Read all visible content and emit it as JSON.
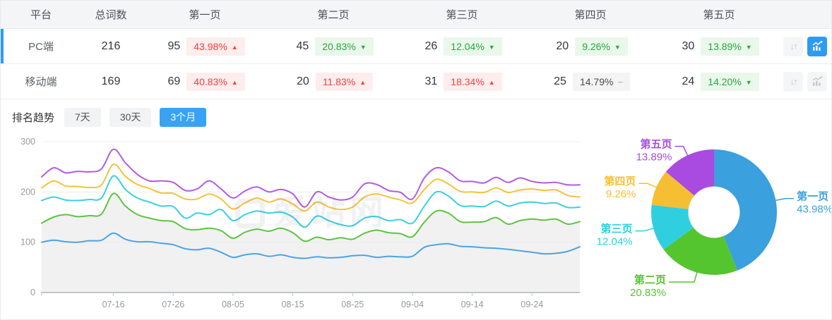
{
  "table": {
    "columns": [
      "平台",
      "总词数",
      "第一页",
      "第二页",
      "第三页",
      "第四页",
      "第五页"
    ],
    "rows": [
      {
        "platform": "PC端",
        "total": "216",
        "selected": "selected",
        "chart_button_state": "active",
        "pages": [
          {
            "count": "95",
            "pct": "43.98%",
            "arrow": "▲",
            "tone": "red"
          },
          {
            "count": "45",
            "pct": "20.83%",
            "arrow": "▼",
            "tone": "green"
          },
          {
            "count": "26",
            "pct": "12.04%",
            "arrow": "▼",
            "tone": "green"
          },
          {
            "count": "20",
            "pct": "9.26%",
            "arrow": "▼",
            "tone": "green"
          },
          {
            "count": "30",
            "pct": "13.89%",
            "arrow": "▼",
            "tone": "green"
          }
        ]
      },
      {
        "platform": "移动端",
        "total": "169",
        "selected": "",
        "chart_button_state": "inactive",
        "pages": [
          {
            "count": "69",
            "pct": "40.83%",
            "arrow": "▲",
            "tone": "red"
          },
          {
            "count": "20",
            "pct": "11.83%",
            "arrow": "▲",
            "tone": "red"
          },
          {
            "count": "31",
            "pct": "18.34%",
            "arrow": "▲",
            "tone": "red"
          },
          {
            "count": "25",
            "pct": "14.79%",
            "arrow": "−",
            "tone": "gray"
          },
          {
            "count": "24",
            "pct": "14.20%",
            "arrow": "▼",
            "tone": "green"
          }
        ]
      }
    ]
  },
  "trend": {
    "label": "排名趋势",
    "tabs": [
      {
        "label": "7天",
        "state": "inactive"
      },
      {
        "label": "30天",
        "state": "inactive"
      },
      {
        "label": "3个月",
        "state": "active"
      }
    ]
  },
  "watermark": "爱站网",
  "colors": {
    "accent_blue": "#2f9cf1",
    "badge_red_text": "#f4403f",
    "badge_green_text": "#27a83c",
    "header_bg": "#f4f5f7"
  },
  "chart_data": [
    {
      "type": "line",
      "title": "排名趋势（3个月）",
      "x_span_days": 90,
      "x_ticks": [
        {
          "day": 12,
          "label": "07-16"
        },
        {
          "day": 22,
          "label": "07-26"
        },
        {
          "day": 32,
          "label": "08-05"
        },
        {
          "day": 42,
          "label": "08-15"
        },
        {
          "day": 52,
          "label": "08-25"
        },
        {
          "day": 62,
          "label": "09-04"
        },
        {
          "day": 72,
          "label": "09-14"
        },
        {
          "day": 82,
          "label": "09-24"
        }
      ],
      "ylim": [
        0,
        300
      ],
      "yticks": [
        0,
        100,
        200,
        300
      ],
      "grid": true,
      "legend": false,
      "note": "five stacked cumulative lines (page1..page1-5 totals), sampled every 2 days",
      "area_fill": {
        "series_index": 1,
        "color": "#f1f1f2"
      },
      "series": [
        {
          "name": "第一页",
          "color": "#4BA4E4",
          "values": [
            100,
            104,
            101,
            100,
            103,
            104,
            118,
            106,
            101,
            101,
            98,
            95,
            87,
            85,
            88,
            80,
            70,
            75,
            77,
            72,
            75,
            70,
            68,
            71,
            69,
            70,
            73,
            74,
            70,
            72,
            71,
            72,
            90,
            95,
            97,
            92,
            91,
            89,
            88,
            86,
            83,
            80,
            77,
            78,
            82,
            91
          ]
        },
        {
          "name": "第二页",
          "color": "#5CC43F",
          "values": [
            138,
            150,
            155,
            151,
            153,
            156,
            197,
            172,
            155,
            148,
            143,
            141,
            127,
            125,
            128,
            123,
            108,
            120,
            126,
            122,
            128,
            119,
            102,
            110,
            105,
            109,
            106,
            118,
            124,
            119,
            117,
            111,
            140,
            162,
            158,
            141,
            140,
            141,
            149,
            136,
            143,
            146,
            144,
            146,
            136,
            141
          ]
        },
        {
          "name": "第三页",
          "color": "#38D0E2",
          "values": [
            183,
            190,
            184,
            183,
            185,
            188,
            232,
            205,
            188,
            180,
            172,
            171,
            148,
            158,
            155,
            165,
            143,
            155,
            162,
            158,
            160,
            150,
            130,
            152,
            143,
            135,
            133,
            148,
            151,
            143,
            145,
            138,
            172,
            200,
            192,
            173,
            172,
            171,
            182,
            172,
            178,
            180,
            177,
            178,
            169,
            170
          ]
        },
        {
          "name": "第四页",
          "color": "#F7C13A",
          "values": [
            208,
            222,
            212,
            211,
            209,
            214,
            255,
            231,
            215,
            207,
            198,
            197,
            186,
            186,
            196,
            186,
            166,
            178,
            188,
            180,
            186,
            176,
            162,
            180,
            170,
            165,
            170,
            190,
            196,
            190,
            184,
            178,
            205,
            225,
            216,
            201,
            200,
            199,
            208,
            199,
            204,
            206,
            203,
            204,
            193,
            190
          ]
        },
        {
          "name": "第五页",
          "color": "#B35BE0",
          "values": [
            230,
            248,
            238,
            241,
            240,
            246,
            285,
            258,
            235,
            222,
            222,
            219,
            203,
            206,
            222,
            206,
            188,
            202,
            210,
            200,
            205,
            196,
            170,
            200,
            190,
            184,
            190,
            216,
            215,
            203,
            199,
            186,
            228,
            248,
            240,
            222,
            221,
            218,
            229,
            219,
            228,
            221,
            218,
            219,
            214,
            214
          ]
        }
      ]
    },
    {
      "type": "pie",
      "donut": true,
      "inner_radius_ratio": 0.41,
      "start_angle": "12 o'clock, clockwise",
      "slices": [
        {
          "label": "第一页",
          "value": 43.98,
          "display": "43.98%",
          "color": "#3AA0DE"
        },
        {
          "label": "第二页",
          "value": 20.83,
          "display": "20.83%",
          "color": "#54C52F"
        },
        {
          "label": "第三页",
          "value": 12.04,
          "display": "12.04%",
          "color": "#2FCFE0"
        },
        {
          "label": "第四页",
          "value": 9.26,
          "display": "9.26%",
          "color": "#F6BE33"
        },
        {
          "label": "第五页",
          "value": 13.89,
          "display": "13.89%",
          "color": "#A94BE0"
        }
      ]
    }
  ]
}
